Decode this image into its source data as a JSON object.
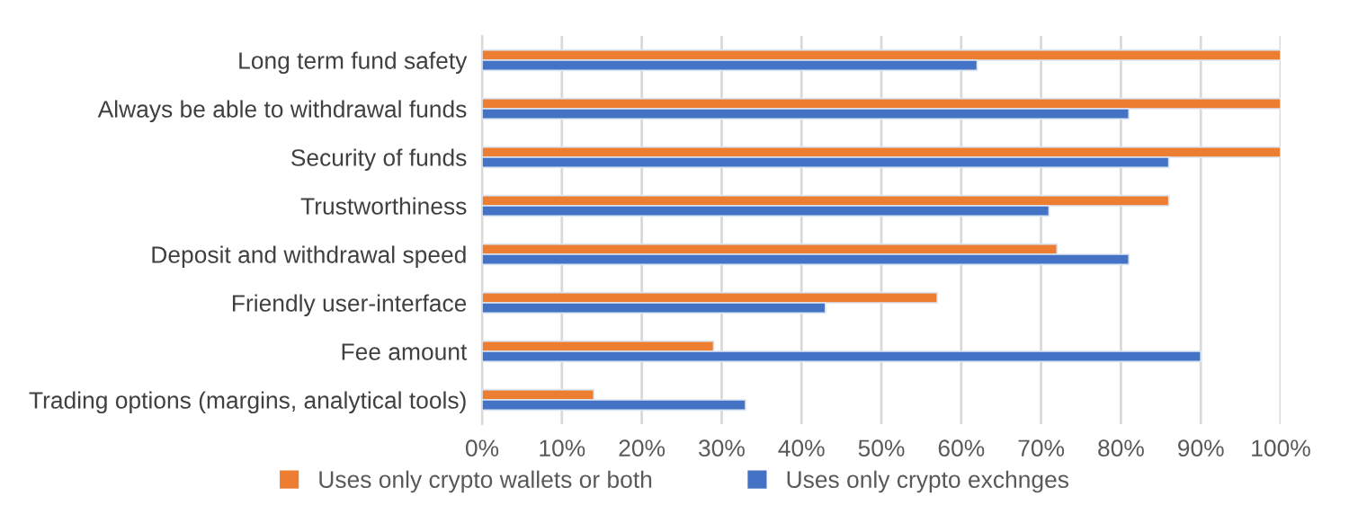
{
  "chart_data": {
    "type": "bar",
    "orientation": "horizontal",
    "categories": [
      "Long term fund safety",
      "Always be able to withdrawal funds",
      "Security of funds",
      "Trustworthiness",
      "Deposit and withdrawal speed",
      "Friendly user-interface",
      "Fee amount",
      "Trading options (margins, analytical tools)"
    ],
    "series": [
      {
        "name": "Uses only crypto wallets or both",
        "color": "#ed7d31",
        "values": [
          100,
          100,
          100,
          86,
          72,
          57,
          29,
          14
        ]
      },
      {
        "name": "Uses only crypto exchnges",
        "color": "#4472c4",
        "values": [
          62,
          81,
          86,
          71,
          81,
          43,
          90,
          33
        ]
      }
    ],
    "xlim": [
      0,
      100
    ],
    "xticks": [
      {
        "value": 0,
        "label": "0%"
      },
      {
        "value": 10,
        "label": "10%"
      },
      {
        "value": 20,
        "label": "20%"
      },
      {
        "value": 30,
        "label": "30%"
      },
      {
        "value": 40,
        "label": "40%"
      },
      {
        "value": 50,
        "label": "50%"
      },
      {
        "value": 60,
        "label": "60%"
      },
      {
        "value": 70,
        "label": "70%"
      },
      {
        "value": 80,
        "label": "80%"
      },
      {
        "value": 90,
        "label": "90%"
      },
      {
        "value": 100,
        "label": "100%"
      }
    ],
    "grid": "x",
    "legend": "bottom"
  }
}
